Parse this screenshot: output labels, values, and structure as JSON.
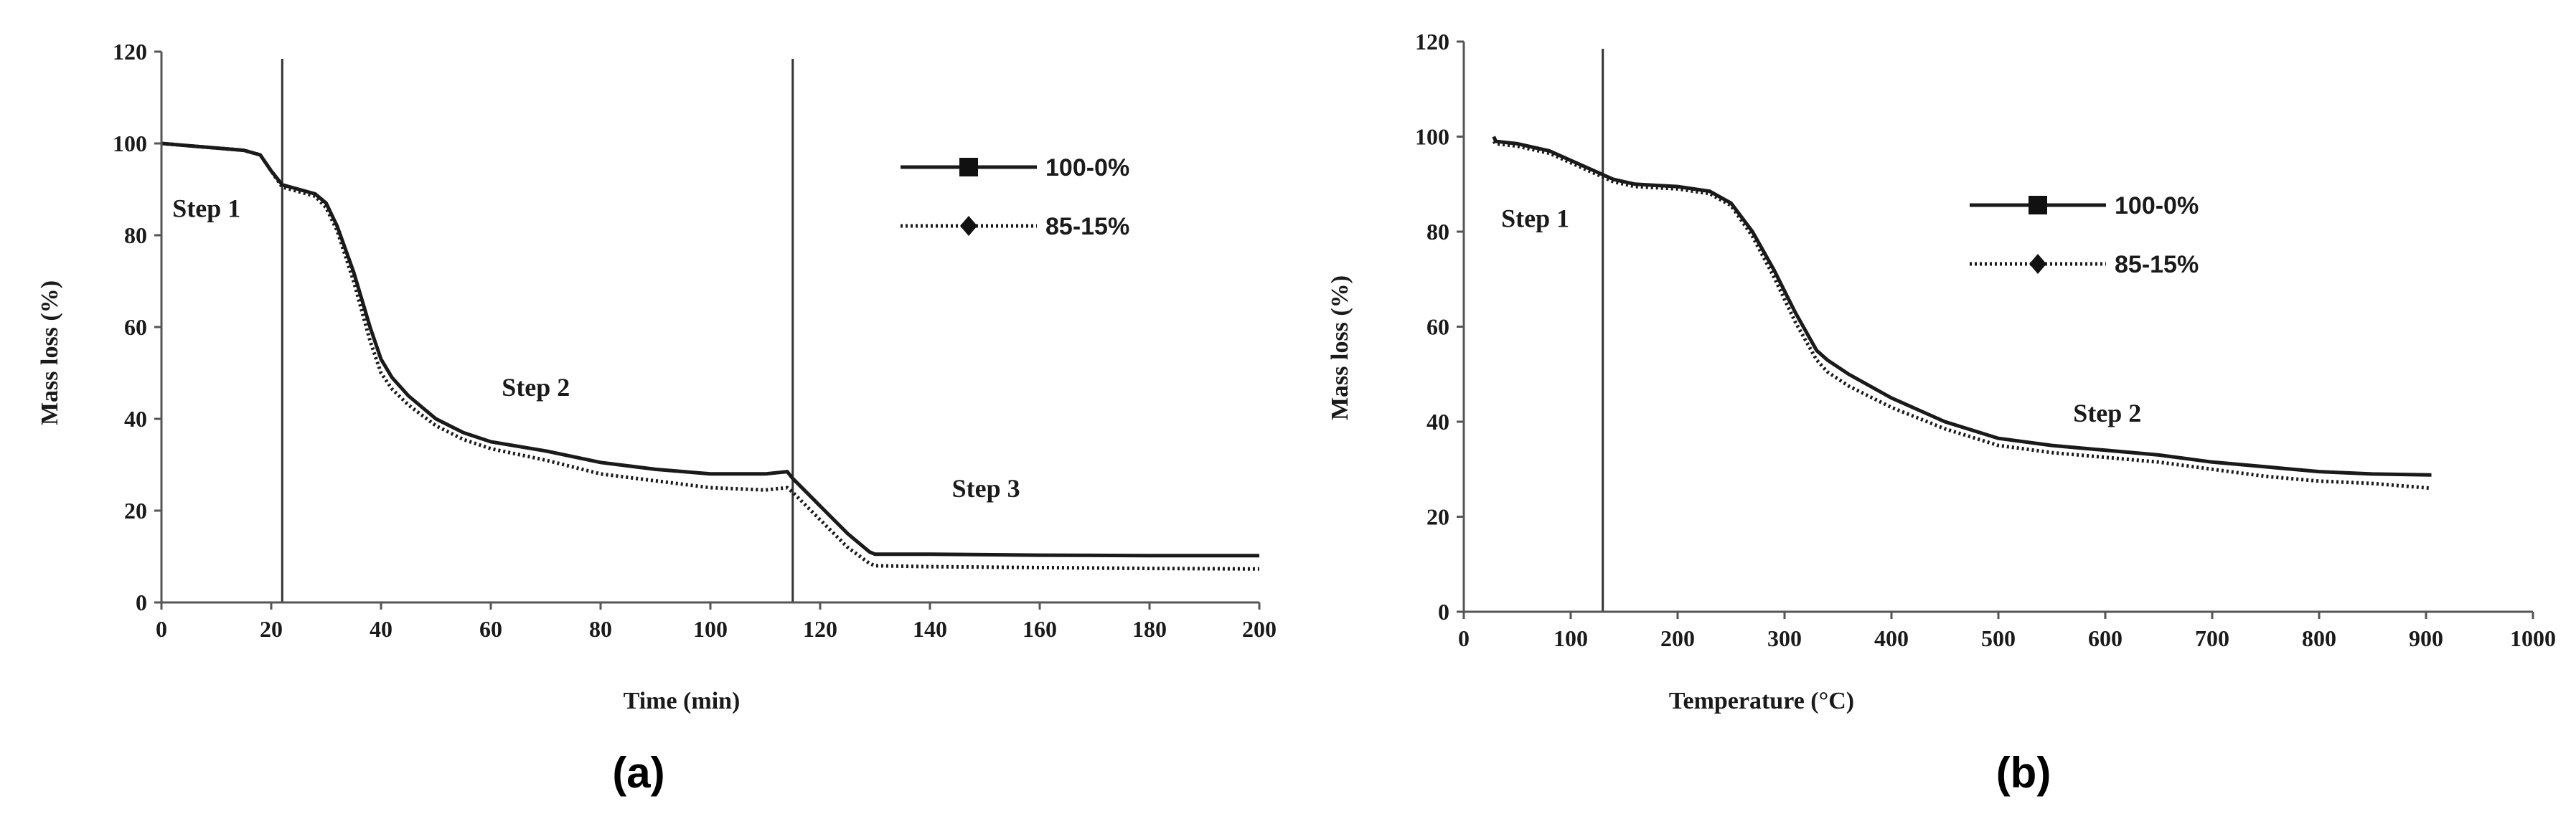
{
  "chart_data": [
    {
      "type": "line",
      "panel_label": "(a)",
      "xlabel": "Time (min)",
      "ylabel": "Mass loss (%)",
      "xlim": [
        0,
        200
      ],
      "ylim": [
        0,
        120
      ],
      "xticks": [
        0,
        20,
        40,
        60,
        80,
        100,
        120,
        140,
        160,
        180,
        200
      ],
      "yticks": [
        0,
        20,
        40,
        60,
        80,
        100,
        120
      ],
      "grid": false,
      "legend_position": "top-right",
      "dividers": [
        22,
        115
      ],
      "annotations": [
        {
          "text": "Step 1",
          "x": 2,
          "y": 84
        },
        {
          "text": "Step 2",
          "x": 62,
          "y": 45
        },
        {
          "text": "Step 3",
          "x": 144,
          "y": 23
        }
      ],
      "series": [
        {
          "name": "100-0%",
          "style": "solid",
          "marker": "square",
          "x": [
            0,
            5,
            10,
            15,
            18,
            20,
            22,
            25,
            28,
            30,
            32,
            35,
            38,
            40,
            42,
            45,
            50,
            55,
            60,
            70,
            80,
            90,
            100,
            110,
            114,
            115,
            120,
            125,
            129,
            130,
            140,
            160,
            180,
            200
          ],
          "y": [
            100,
            99.5,
            99,
            98.5,
            97.5,
            94,
            91,
            90,
            89,
            87,
            82,
            72,
            60,
            53,
            49,
            45,
            40,
            37,
            35,
            33,
            30.5,
            29,
            28,
            28,
            28.5,
            27,
            21,
            15,
            11,
            10.5,
            10.5,
            10.3,
            10.2,
            10.2
          ]
        },
        {
          "name": "85-15%",
          "style": "dotted",
          "marker": "diamond",
          "x": [
            0,
            5,
            10,
            15,
            18,
            20,
            22,
            25,
            28,
            30,
            32,
            35,
            38,
            40,
            42,
            45,
            50,
            55,
            60,
            70,
            80,
            90,
            100,
            110,
            114,
            115,
            120,
            125,
            129,
            130,
            140,
            160,
            180,
            200
          ],
          "y": [
            100,
            99.5,
            99,
            98.5,
            97.5,
            94,
            90.5,
            89.5,
            88.5,
            86,
            81,
            70,
            57,
            50,
            46.5,
            43,
            38.5,
            35.5,
            33.5,
            31,
            28,
            26.5,
            25,
            24.5,
            25,
            24,
            18,
            12,
            8.5,
            8,
            7.8,
            7.6,
            7.4,
            7.3
          ]
        }
      ]
    },
    {
      "type": "line",
      "panel_label": "(b)",
      "xlabel": "Temperature (°C)",
      "ylabel": "Mass loss (%)",
      "xlim": [
        0,
        1000
      ],
      "ylim": [
        0,
        120
      ],
      "xticks": [
        0,
        100,
        200,
        300,
        400,
        500,
        600,
        700,
        800,
        900,
        1000
      ],
      "yticks": [
        0,
        20,
        40,
        60,
        80,
        100,
        120
      ],
      "grid": false,
      "legend_position": "top-right",
      "dividers": [
        130
      ],
      "annotations": [
        {
          "text": "Step 1",
          "x": 35,
          "y": 81
        },
        {
          "text": "Step 2",
          "x": 570,
          "y": 40
        }
      ],
      "series": [
        {
          "name": "100-0%",
          "style": "solid",
          "marker": "square",
          "x": [
            28,
            30,
            50,
            80,
            100,
            120,
            140,
            160,
            200,
            230,
            250,
            270,
            290,
            310,
            330,
            340,
            360,
            400,
            450,
            500,
            550,
            600,
            650,
            700,
            750,
            800,
            850,
            905
          ],
          "y": [
            100,
            99,
            98.5,
            97,
            95,
            93,
            91,
            90,
            89.5,
            88.5,
            86,
            80,
            72,
            63,
            55,
            53,
            50,
            45,
            40,
            36.5,
            35,
            34,
            33,
            31.5,
            30.5,
            29.5,
            29,
            28.8
          ]
        },
        {
          "name": "85-15%",
          "style": "dotted",
          "marker": "diamond",
          "x": [
            28,
            30,
            50,
            80,
            100,
            120,
            140,
            160,
            200,
            230,
            250,
            270,
            290,
            310,
            330,
            340,
            360,
            400,
            450,
            500,
            550,
            600,
            650,
            700,
            750,
            800,
            850,
            905
          ],
          "y": [
            99,
            98.5,
            98,
            96.5,
            94.5,
            92.5,
            90.5,
            89.5,
            89,
            88,
            85.5,
            79,
            70.5,
            61,
            53,
            50.5,
            47.5,
            43,
            38.5,
            35,
            33.5,
            32.5,
            31.5,
            30,
            28.5,
            27.5,
            27,
            26
          ]
        }
      ]
    }
  ]
}
